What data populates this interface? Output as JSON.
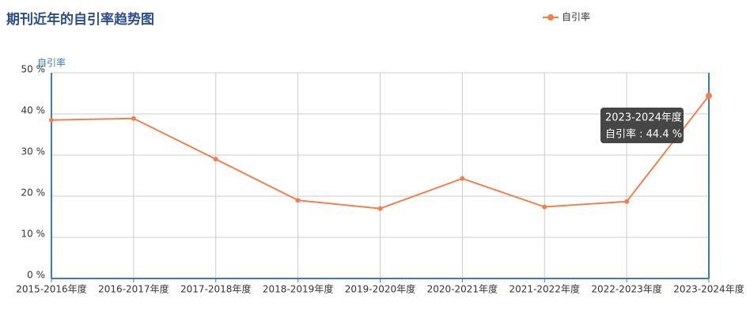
{
  "chart_data": {
    "type": "line",
    "title": "期刊近年的自引率趋势图",
    "y_axis_label": "自引率",
    "categories": [
      "2015-2016年度",
      "2016-2017年度",
      "2017-2018年度",
      "2018-2019年度",
      "2019-2020年度",
      "2020-2021年度",
      "2021-2022年度",
      "2022-2023年度",
      "2023-2024年度"
    ],
    "series": [
      {
        "name": "自引率",
        "color": "#f2804f",
        "values": [
          38.5,
          38.9,
          29.0,
          19.0,
          17.0,
          24.3,
          17.4,
          18.7,
          44.4
        ]
      }
    ],
    "ylim": [
      0,
      50
    ],
    "yticks": [
      {
        "value": 0,
        "label": "0 %"
      },
      {
        "value": 10,
        "label": "10 %"
      },
      {
        "value": 20,
        "label": "20 %"
      },
      {
        "value": 30,
        "label": "30 %"
      },
      {
        "value": 40,
        "label": "40 %"
      },
      {
        "value": 50,
        "label": "50 %"
      }
    ],
    "grid": true,
    "legend": "top-right",
    "tooltip": {
      "title": "2023-2024年度",
      "text": "自引率 : 44.4 %"
    }
  }
}
